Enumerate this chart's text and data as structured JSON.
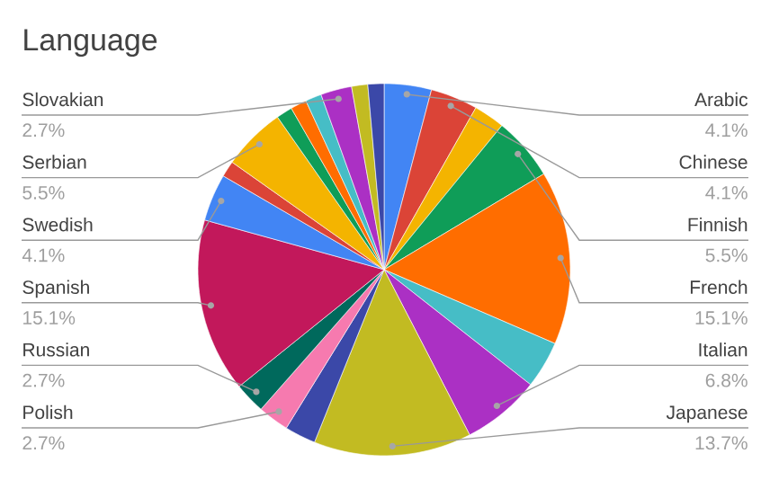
{
  "chart_data": {
    "type": "pie",
    "title": "Language",
    "categories": [
      "Arabic",
      "Chinese",
      null,
      "Finnish",
      "French",
      null,
      "Italian",
      "Japanese",
      null,
      "Polish",
      "Russian",
      "Spanish",
      "Swedish",
      null,
      "Serbian",
      null,
      null,
      null,
      "Slovakian",
      null,
      null
    ],
    "values": [
      4.1,
      4.1,
      2.7,
      5.5,
      15.1,
      4.1,
      6.8,
      13.7,
      2.7,
      2.7,
      2.7,
      15.1,
      4.1,
      1.4,
      5.5,
      1.4,
      1.4,
      1.4,
      2.7,
      1.4,
      1.4
    ],
    "value_labels": [
      "4.1%",
      "4.1%",
      null,
      "5.5%",
      "15.1%",
      null,
      "6.8%",
      "13.7%",
      null,
      "2.7%",
      "2.7%",
      "15.1%",
      "4.1%",
      null,
      "5.5%",
      null,
      null,
      null,
      "2.7%",
      null,
      null
    ],
    "colors": [
      "#4285f4",
      "#db4437",
      "#f4b400",
      "#0f9d58",
      "#ff6d00",
      "#46bdc6",
      "#ab30c4",
      "#c2bb22",
      "#3b48a8",
      "#f67aaf",
      "#00695c",
      "#c2185b",
      "#4285f4",
      "#db4437",
      "#f4b400",
      "#0f9d58",
      "#ff6d00",
      "#46bdc6",
      "#ab30c4",
      "#c2bb22",
      "#3b48a8"
    ]
  }
}
